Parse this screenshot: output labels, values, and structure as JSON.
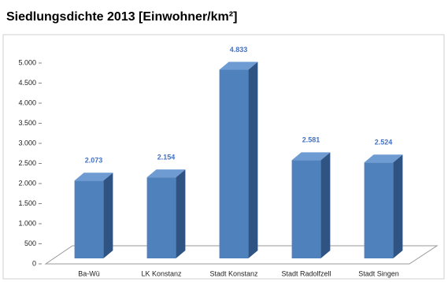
{
  "chart_data": {
    "type": "bar3d",
    "title": "Siedlungsdichte 2013 [Einwohner/km²]",
    "categories": [
      "Ba-Wü",
      "LK Konstanz",
      "Stadt Konstanz",
      "Stadt Radolfzell",
      "Stadt Singen"
    ],
    "values": [
      2073,
      2154,
      4833,
      2581,
      2524
    ],
    "value_labels": [
      "2.073",
      "2.154",
      "4.833",
      "2.581",
      "2.524"
    ],
    "color": "#4f81bd",
    "ylim": [
      0,
      5000
    ],
    "yticks": [
      0,
      500,
      {
        "value": 1000,
        "label": "1.000"
      },
      {
        "value": 1500,
        "label": "1.500"
      },
      {
        "value": 2000,
        "label": "2.000"
      },
      {
        "value": 2500,
        "label": "2.500"
      },
      {
        "value": 3000,
        "label": "3.000"
      },
      {
        "value": 3500,
        "label": "3.500"
      },
      {
        "value": 4000,
        "label": "4.000"
      },
      {
        "value": 4500,
        "label": "4.500"
      },
      {
        "value": 5000,
        "label": "5.000"
      }
    ],
    "grid": false
  }
}
